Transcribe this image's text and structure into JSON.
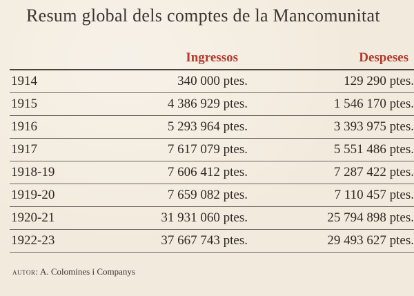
{
  "title": "Resum global dels comptes de la Mancomunitat",
  "columns": {
    "ingressos": "Ingressos",
    "despeses": "Despeses"
  },
  "rows": [
    {
      "year": "1914",
      "ingressos": "340 000 ptes.",
      "despeses": "129 290 ptes."
    },
    {
      "year": "1915",
      "ingressos": "4 386 929 ptes.",
      "despeses": "1 546 170 ptes."
    },
    {
      "year": "1916",
      "ingressos": "5 293 964 ptes.",
      "despeses": "3 393 975 ptes."
    },
    {
      "year": "1917",
      "ingressos": "7 617 079 ptes.",
      "despeses": "5 551 486 ptes."
    },
    {
      "year": "1918-19",
      "ingressos": "7 606 412 ptes.",
      "despeses": "7 287 422 ptes."
    },
    {
      "year": "1919-20",
      "ingressos": "7 659 082 ptes.",
      "despeses": "7 110 457 ptes."
    },
    {
      "year": "1920-21",
      "ingressos": "31 931 060 ptes.",
      "despeses": "25 794 898 ptes."
    },
    {
      "year": "1922-23",
      "ingressos": "37 667 743 ptes.",
      "despeses": "29 493 627 ptes."
    }
  ],
  "footer": {
    "label": "autor:",
    "author": "A. Colomines i Companys"
  },
  "colors": {
    "header_accent": "#b23a2e",
    "paper": "#f2eadc"
  }
}
